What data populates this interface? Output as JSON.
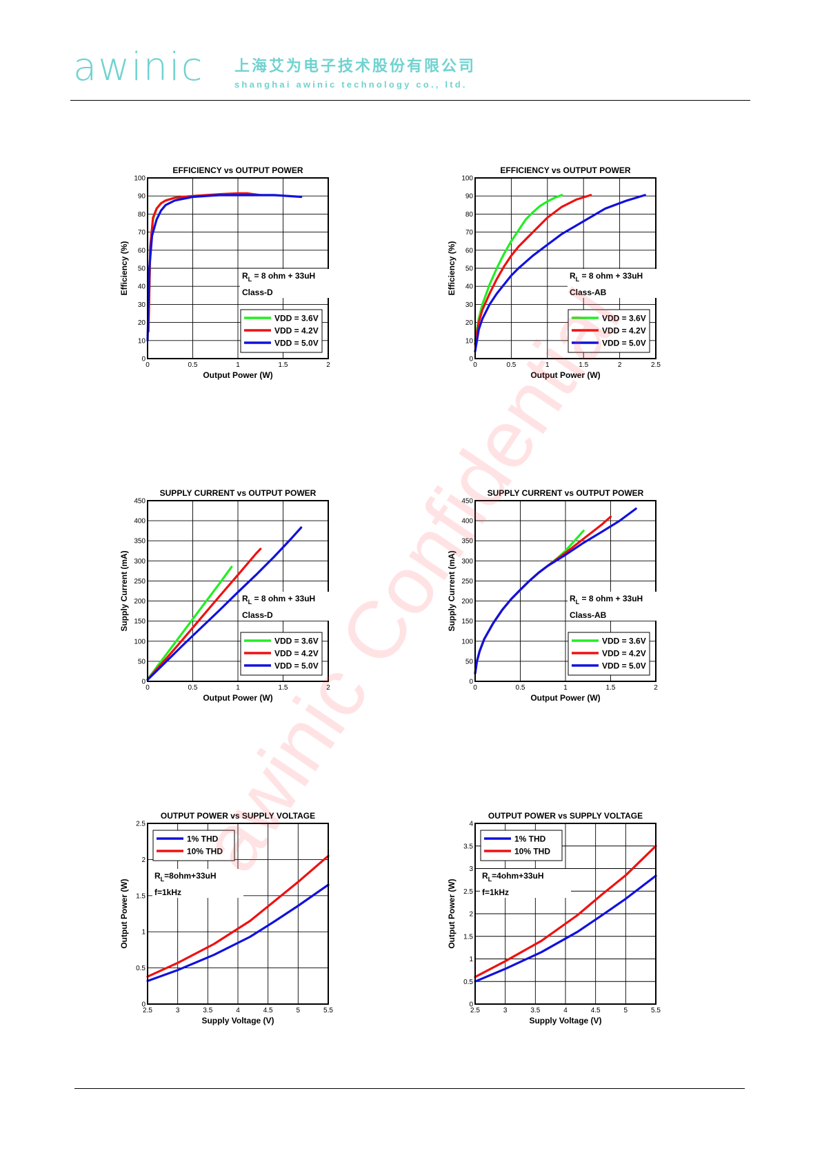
{
  "header": {
    "logo_text": "awinic",
    "company_cn": "上海艾为电子技术股份有限公司",
    "company_en": "shanghai awinic technology co., ltd."
  },
  "watermark": "awinic Confidential",
  "colors": {
    "brand": "#6fd3d0",
    "green": "#22ee22",
    "red": "#ee1111",
    "blue": "#1111dd"
  },
  "chart_data": [
    {
      "type": "line",
      "title": "EFFICIENCY vs OUTPUT POWER",
      "xlabel": "Output Power (W)",
      "ylabel": "Efficiency (%)",
      "xlim": [
        0,
        2
      ],
      "ylim": [
        0,
        100
      ],
      "xticks": [
        0,
        0.5,
        1,
        1.5,
        2
      ],
      "yticks": [
        0,
        10,
        20,
        30,
        40,
        50,
        60,
        70,
        80,
        90,
        100
      ],
      "xtick_labels": [
        "0",
        "0.5",
        "1",
        "1.5",
        "2"
      ],
      "ytick_labels": [
        "0",
        "10",
        "20",
        "30",
        "40",
        "50",
        "60",
        "70",
        "80",
        "90",
        "100"
      ],
      "grid": true,
      "annotations": {
        "rl_main": "R",
        "rl_sub": "L",
        "rl_rest": " = 8 ohm + 33uH",
        "mode": "Class-D"
      },
      "legend_position": "bottom-right",
      "series": [
        {
          "name": "VDD = 3.6V",
          "color": "green",
          "x": [
            0.01,
            0.03,
            0.06,
            0.1,
            0.15,
            0.2,
            0.3,
            0.5,
            0.7,
            0.9
          ],
          "y": [
            20,
            60,
            77,
            83,
            86,
            87.5,
            89,
            90,
            90.5,
            91
          ]
        },
        {
          "name": "VDD = 4.2V",
          "color": "red",
          "x": [
            0.01,
            0.03,
            0.06,
            0.1,
            0.15,
            0.2,
            0.3,
            0.5,
            0.8,
            1.0,
            1.1,
            1.25
          ],
          "y": [
            15,
            62,
            78,
            83,
            86,
            87.5,
            89,
            90,
            91,
            91.5,
            91.5,
            90.5
          ]
        },
        {
          "name": "VDD = 5.0V",
          "color": "blue",
          "x": [
            0.0,
            0.02,
            0.05,
            0.1,
            0.15,
            0.2,
            0.3,
            0.5,
            0.8,
            1.1,
            1.4,
            1.7
          ],
          "y": [
            10,
            50,
            68,
            77,
            82,
            85,
            87.5,
            89.5,
            90.5,
            90.5,
            90.5,
            89.5
          ]
        }
      ]
    },
    {
      "type": "line",
      "title": "EFFICIENCY vs OUTPUT POWER",
      "xlabel": "Output Power (W)",
      "ylabel": "Efficiency (%)",
      "xlim": [
        0,
        2.5
      ],
      "ylim": [
        0,
        100
      ],
      "xticks": [
        0,
        0.5,
        1,
        1.5,
        2,
        2.5
      ],
      "yticks": [
        0,
        10,
        20,
        30,
        40,
        50,
        60,
        70,
        80,
        90,
        100
      ],
      "xtick_labels": [
        "0",
        "0.5",
        "1",
        "1.5",
        "2",
        "2.5"
      ],
      "ytick_labels": [
        "0",
        "10",
        "20",
        "30",
        "40",
        "50",
        "60",
        "70",
        "80",
        "90",
        "100"
      ],
      "grid": true,
      "annotations": {
        "rl_main": "R",
        "rl_sub": "L",
        "rl_rest": " = 8 ohm + 33uH",
        "mode": "Class-AB"
      },
      "legend_position": "bottom-right",
      "series": [
        {
          "name": "VDD = 3.6V",
          "color": "green",
          "x": [
            0.0,
            0.05,
            0.1,
            0.2,
            0.3,
            0.4,
            0.5,
            0.6,
            0.7,
            0.8,
            0.9,
            1.0,
            1.1,
            1.2
          ],
          "y": [
            10,
            22,
            30,
            41,
            50,
            58,
            65,
            71,
            77,
            81,
            84.5,
            87,
            89,
            90.5
          ]
        },
        {
          "name": "VDD = 4.2V",
          "color": "red",
          "x": [
            0.0,
            0.05,
            0.1,
            0.2,
            0.3,
            0.4,
            0.5,
            0.6,
            0.8,
            1.0,
            1.2,
            1.4,
            1.6
          ],
          "y": [
            8,
            20,
            27,
            36,
            44,
            51,
            57,
            62,
            70,
            78,
            84,
            88,
            90.5
          ]
        },
        {
          "name": "VDD = 5.0V",
          "color": "blue",
          "x": [
            0.0,
            0.05,
            0.1,
            0.2,
            0.3,
            0.4,
            0.5,
            0.6,
            0.8,
            1.0,
            1.2,
            1.5,
            1.8,
            2.1,
            2.35
          ],
          "y": [
            4,
            16,
            22,
            30,
            36,
            41,
            46,
            50,
            57,
            63,
            69,
            76,
            83,
            87.5,
            90.5
          ]
        }
      ]
    },
    {
      "type": "line",
      "title": "SUPPLY CURRENT vs OUTPUT POWER",
      "xlabel": "Output Power (W)",
      "ylabel": "Supply Current (mA)",
      "xlim": [
        0,
        2
      ],
      "ylim": [
        0,
        450
      ],
      "xticks": [
        0,
        0.5,
        1,
        1.5,
        2
      ],
      "yticks": [
        0,
        50,
        100,
        150,
        200,
        250,
        300,
        350,
        400,
        450
      ],
      "xtick_labels": [
        "0",
        "0.5",
        "1",
        "1.5",
        "2"
      ],
      "ytick_labels": [
        "0",
        "50",
        "100",
        "150",
        "200",
        "250",
        "300",
        "350",
        "400",
        "450"
      ],
      "grid": true,
      "annotations": {
        "rl_main": "R",
        "rl_sub": "L",
        "rl_rest": " = 8 ohm + 33uH",
        "mode": "Class-D"
      },
      "legend_position": "bottom-right",
      "series": [
        {
          "name": "VDD = 3.6V",
          "color": "green",
          "x": [
            0,
            0.1,
            0.2,
            0.4,
            0.6,
            0.8,
            0.93
          ],
          "y": [
            5,
            35,
            65,
            125,
            185,
            245,
            285
          ]
        },
        {
          "name": "VDD = 4.2V",
          "color": "red",
          "x": [
            0,
            0.1,
            0.2,
            0.4,
            0.6,
            0.8,
            1.0,
            1.2,
            1.25
          ],
          "y": [
            4,
            30,
            55,
            107,
            160,
            213,
            265,
            318,
            330
          ]
        },
        {
          "name": "VDD = 5.0V",
          "color": "blue",
          "x": [
            0,
            0.2,
            0.4,
            0.6,
            0.8,
            1.0,
            1.2,
            1.4,
            1.6,
            1.7
          ],
          "y": [
            4,
            48,
            92,
            135,
            178,
            222,
            265,
            310,
            358,
            383
          ]
        }
      ]
    },
    {
      "type": "line",
      "title": "SUPPLY CURRENT vs OUTPUT POWER",
      "xlabel": "Output Power (W)",
      "ylabel": "Supply Current (mA)",
      "xlim": [
        0,
        2
      ],
      "ylim": [
        0,
        450
      ],
      "xticks": [
        0,
        0.5,
        1,
        1.5,
        2
      ],
      "yticks": [
        0,
        50,
        100,
        150,
        200,
        250,
        300,
        350,
        400,
        450
      ],
      "xtick_labels": [
        "0",
        "0.5",
        "1",
        "1.5",
        "2"
      ],
      "ytick_labels": [
        "0",
        "50",
        "100",
        "150",
        "200",
        "250",
        "300",
        "350",
        "400",
        "450"
      ],
      "grid": true,
      "annotations": {
        "rl_main": "R",
        "rl_sub": "L",
        "rl_rest": " = 8 ohm + 33uH",
        "mode": "Class-AB"
      },
      "legend_position": "bottom-right",
      "series": [
        {
          "name": "VDD = 3.6V",
          "color": "green",
          "x": [
            0.0,
            0.02,
            0.05,
            0.1,
            0.2,
            0.3,
            0.4,
            0.5,
            0.6,
            0.7,
            0.8,
            0.9,
            1.0,
            1.1,
            1.2
          ],
          "y": [
            20,
            50,
            75,
            105,
            145,
            178,
            205,
            228,
            250,
            270,
            287,
            305,
            325,
            350,
            375
          ]
        },
        {
          "name": "VDD = 4.2V",
          "color": "red",
          "x": [
            0.0,
            0.02,
            0.05,
            0.1,
            0.2,
            0.3,
            0.4,
            0.5,
            0.6,
            0.7,
            0.8,
            1.0,
            1.2,
            1.4,
            1.5
          ],
          "y": [
            20,
            50,
            75,
            105,
            145,
            178,
            205,
            228,
            250,
            270,
            287,
            320,
            355,
            390,
            410
          ]
        },
        {
          "name": "VDD = 5.0V",
          "color": "blue",
          "x": [
            0.0,
            0.02,
            0.05,
            0.1,
            0.2,
            0.3,
            0.4,
            0.5,
            0.6,
            0.7,
            0.8,
            1.0,
            1.2,
            1.4,
            1.6,
            1.78
          ],
          "y": [
            20,
            50,
            75,
            105,
            145,
            178,
            205,
            228,
            250,
            270,
            287,
            315,
            345,
            372,
            400,
            430
          ]
        }
      ]
    },
    {
      "type": "line",
      "title": "OUTPUT POWER vs SUPPLY VOLTAGE",
      "xlabel": "Supply Voltage (V)",
      "ylabel": "Output Power (W)",
      "xlim": [
        2.5,
        5.5
      ],
      "ylim": [
        0,
        2.5
      ],
      "xticks": [
        2.5,
        3,
        3.5,
        4,
        4.5,
        5,
        5.5
      ],
      "yticks": [
        0,
        0.5,
        1,
        1.5,
        2,
        2.5
      ],
      "xtick_labels": [
        "2.5",
        "3",
        "3.5",
        "4",
        "4.5",
        "5",
        "5.5"
      ],
      "ytick_labels": [
        "0",
        "0.5",
        "1",
        "1.5",
        "2",
        "2.5"
      ],
      "grid": true,
      "annotations": {
        "rl_main": "R",
        "rl_sub": "L",
        "rl_rest": "=8ohm+33uH",
        "mode": "f=1kHz"
      },
      "legend_position": "top-left",
      "series": [
        {
          "name": "1% THD",
          "color": "blue",
          "x": [
            2.5,
            3.0,
            3.6,
            4.2,
            4.6,
            5.0,
            5.5
          ],
          "y": [
            0.32,
            0.47,
            0.68,
            0.93,
            1.14,
            1.36,
            1.65
          ]
        },
        {
          "name": "10% THD",
          "color": "red",
          "x": [
            2.5,
            3.0,
            3.6,
            4.2,
            4.6,
            5.0,
            5.5
          ],
          "y": [
            0.38,
            0.57,
            0.83,
            1.15,
            1.42,
            1.69,
            2.05
          ]
        }
      ]
    },
    {
      "type": "line",
      "title": "OUTPUT POWER vs SUPPLY VOLTAGE",
      "xlabel": "Supply Voltage (V)",
      "ylabel": "Output Power (W)",
      "xlim": [
        2.5,
        5.5
      ],
      "ylim": [
        0,
        4
      ],
      "xticks": [
        2.5,
        3,
        3.5,
        4,
        4.5,
        5,
        5.5
      ],
      "yticks": [
        0,
        0.5,
        1,
        1.5,
        2,
        2.5,
        3,
        3.5,
        4
      ],
      "xtick_labels": [
        "2.5",
        "3",
        "3.5",
        "4",
        "4.5",
        "5",
        "5.5"
      ],
      "ytick_labels": [
        "0",
        "0.5",
        "1",
        "1.5",
        "2",
        "2.5",
        "3",
        "3.5",
        "4"
      ],
      "grid": true,
      "annotations": {
        "rl_main": "R",
        "rl_sub": "L",
        "rl_rest": "=4ohm+33uH",
        "mode": "f=1kHz"
      },
      "legend_position": "top-left",
      "series": [
        {
          "name": "1% THD",
          "color": "blue",
          "x": [
            2.5,
            3.0,
            3.6,
            4.2,
            4.6,
            5.0,
            5.5
          ],
          "y": [
            0.5,
            0.78,
            1.15,
            1.6,
            1.96,
            2.33,
            2.84
          ]
        },
        {
          "name": "10% THD",
          "color": "red",
          "x": [
            2.5,
            3.0,
            3.6,
            4.2,
            4.6,
            5.0,
            5.5
          ],
          "y": [
            0.6,
            0.95,
            1.4,
            1.97,
            2.42,
            2.85,
            3.5
          ]
        }
      ]
    }
  ]
}
